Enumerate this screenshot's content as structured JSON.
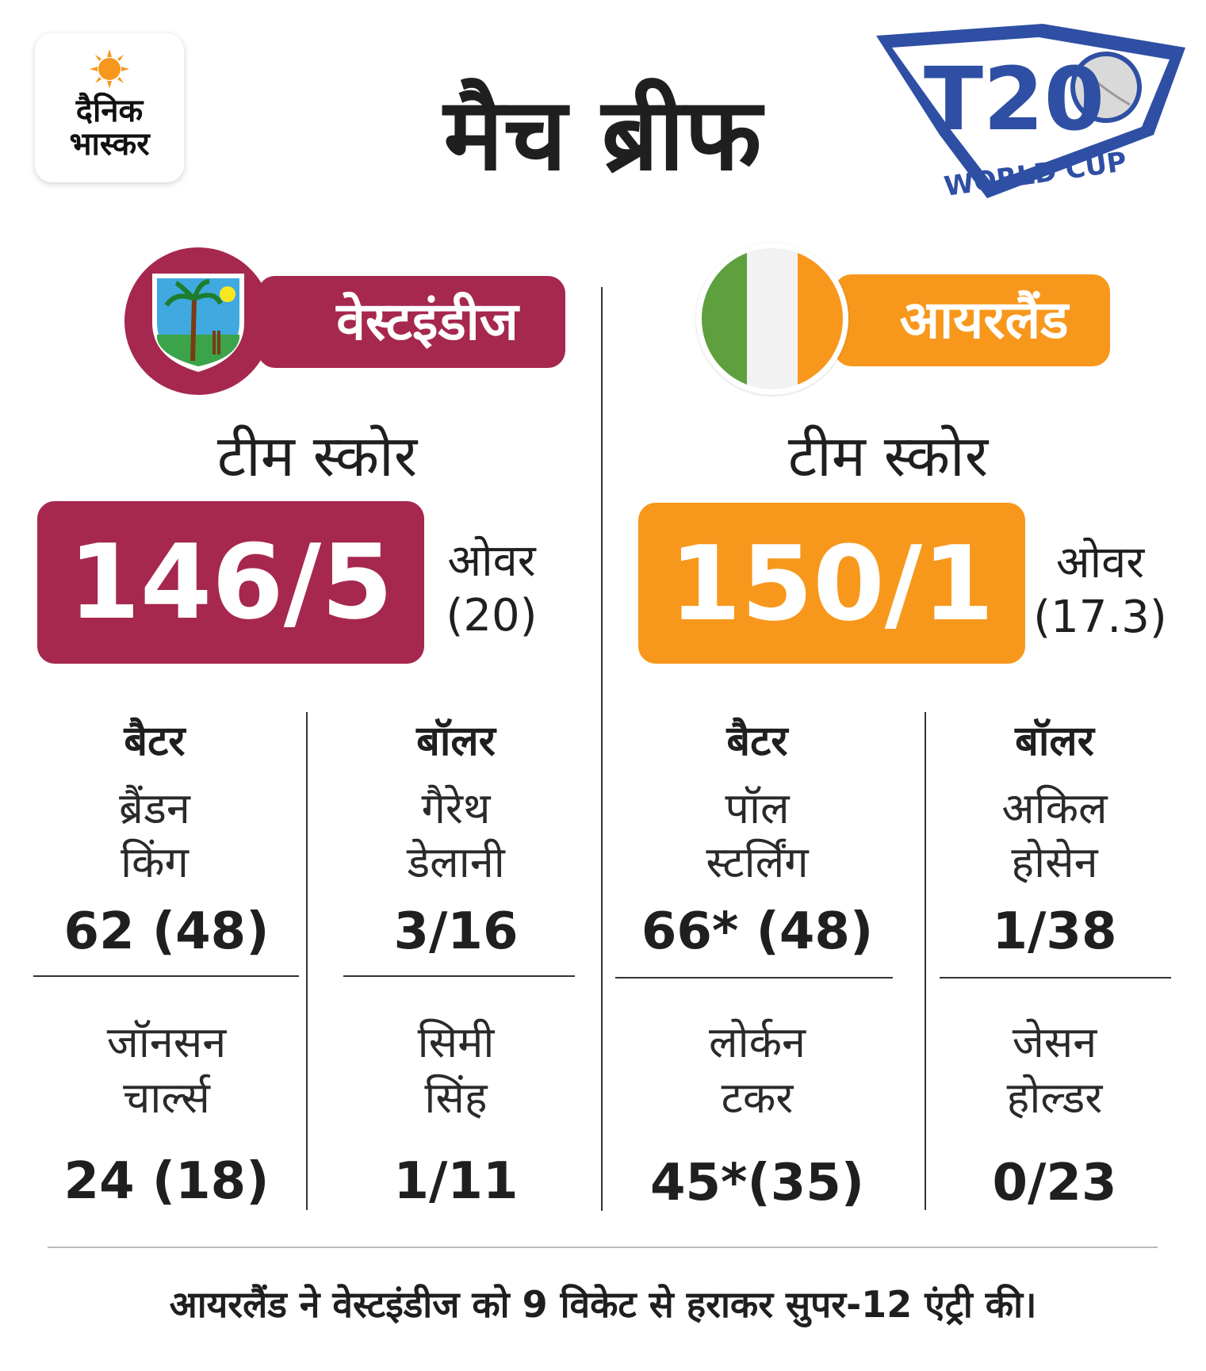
{
  "header": {
    "logo_line1": "दैनिक",
    "logo_line2": "भास्कर",
    "title": "मैच ब्रीफ",
    "t20_logo_main": "T20",
    "t20_logo_sub": "WORLD CUP"
  },
  "teams": {
    "left": {
      "name": "वेस्टइंडीज",
      "color": "#A6284F",
      "score_label": "टीम स्कोर",
      "score": "146/5",
      "overs_label": "ओवर",
      "overs_value": "(20)",
      "batter_head": "बैटर",
      "bowler_head": "बॉलर",
      "batter1_line1": "ब्रैंडन",
      "batter1_line2": "किंग",
      "batter1_stat": "62 (48)",
      "bowler1_line1": "गैरेथ",
      "bowler1_line2": "डेलानी",
      "bowler1_stat": "3/16",
      "batter2_line1": "जॉनसन",
      "batter2_line2": "चार्ल्स",
      "batter2_stat": "24 (18)",
      "bowler2_line1": "सिमी",
      "bowler2_line2": "सिंह",
      "bowler2_stat": "1/11"
    },
    "right": {
      "name": "आयरलैंड",
      "color": "#F7981D",
      "score_label": "टीम स्कोर",
      "score": "150/1",
      "overs_label": "ओवर",
      "overs_value": "(17.3)",
      "batter_head": "बैटर",
      "bowler_head": "बॉलर",
      "batter1_line1": "पॉल",
      "batter1_line2": "स्टर्लिंग",
      "batter1_stat": "66* (48)",
      "bowler1_line1": "अकिल",
      "bowler1_line2": "होसेन",
      "bowler1_stat": "1/38",
      "batter2_line1": "लोर्कन",
      "batter2_line2": "टकर",
      "batter2_stat": "45*(35)",
      "bowler2_line1": "जेसन",
      "bowler2_line2": "होल्डर",
      "bowler2_stat": "0/23"
    }
  },
  "footer": "आयरलैंड ने वेस्टइंडीज को 9 विकेट से हराकर सुपर-12 एंट्री की।"
}
